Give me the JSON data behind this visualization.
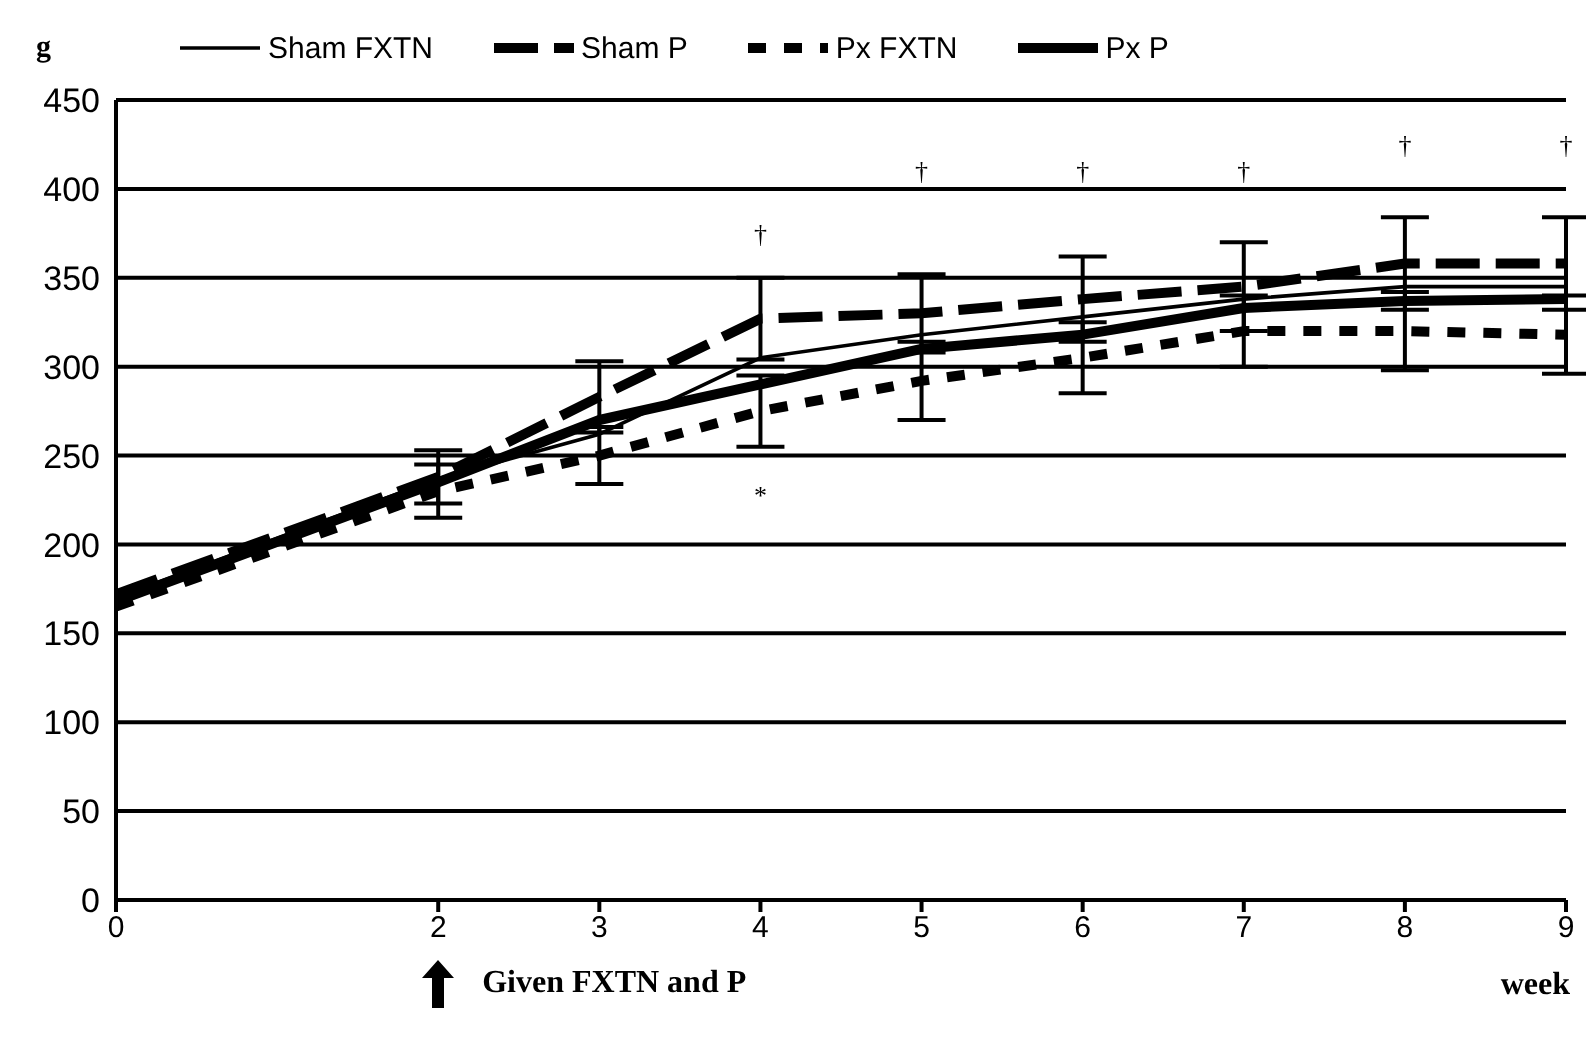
{
  "chart_data": {
    "type": "line",
    "xlabel": "week",
    "ylabel": "g",
    "x": [
      0,
      2,
      3,
      4,
      5,
      6,
      7,
      8,
      9
    ],
    "series": [
      {
        "name": "Sham FXTN",
        "color": "#000000",
        "line_style": "solid",
        "values": [
          170,
          237,
          262,
          305,
          318,
          328,
          338,
          345,
          345
        ]
      },
      {
        "name": "Sham P",
        "color": "#000000",
        "line_style": "dashed",
        "values": [
          172,
          238,
          283,
          327,
          330,
          338,
          345,
          358,
          358
        ],
        "errors": [
          null,
          15,
          20,
          23,
          22,
          24,
          25,
          26,
          26
        ]
      },
      {
        "name": "Px FXTN",
        "color": "#000000",
        "line_style": "dotted",
        "values": [
          165,
          230,
          250,
          275,
          292,
          305,
          320,
          320,
          318
        ],
        "errors": [
          null,
          15,
          16,
          20,
          22,
          20,
          20,
          22,
          22
        ]
      },
      {
        "name": "Px P",
        "color": "#000000",
        "line_style": "solid",
        "values": [
          168,
          235,
          270,
          290,
          310,
          318,
          333,
          337,
          338
        ]
      }
    ],
    "xlim": [
      0,
      9
    ],
    "xticks": [
      0,
      2,
      3,
      4,
      5,
      6,
      7,
      8,
      9
    ],
    "ylim": [
      0,
      450
    ],
    "yticks": [
      0,
      50,
      100,
      150,
      200,
      250,
      300,
      350,
      400,
      450
    ],
    "grid": "y",
    "legend": "top",
    "marker": "none",
    "annotations": [
      "†",
      "*",
      "†",
      "†",
      "†",
      "†",
      "†",
      "Given FXTN and P"
    ]
  }
}
